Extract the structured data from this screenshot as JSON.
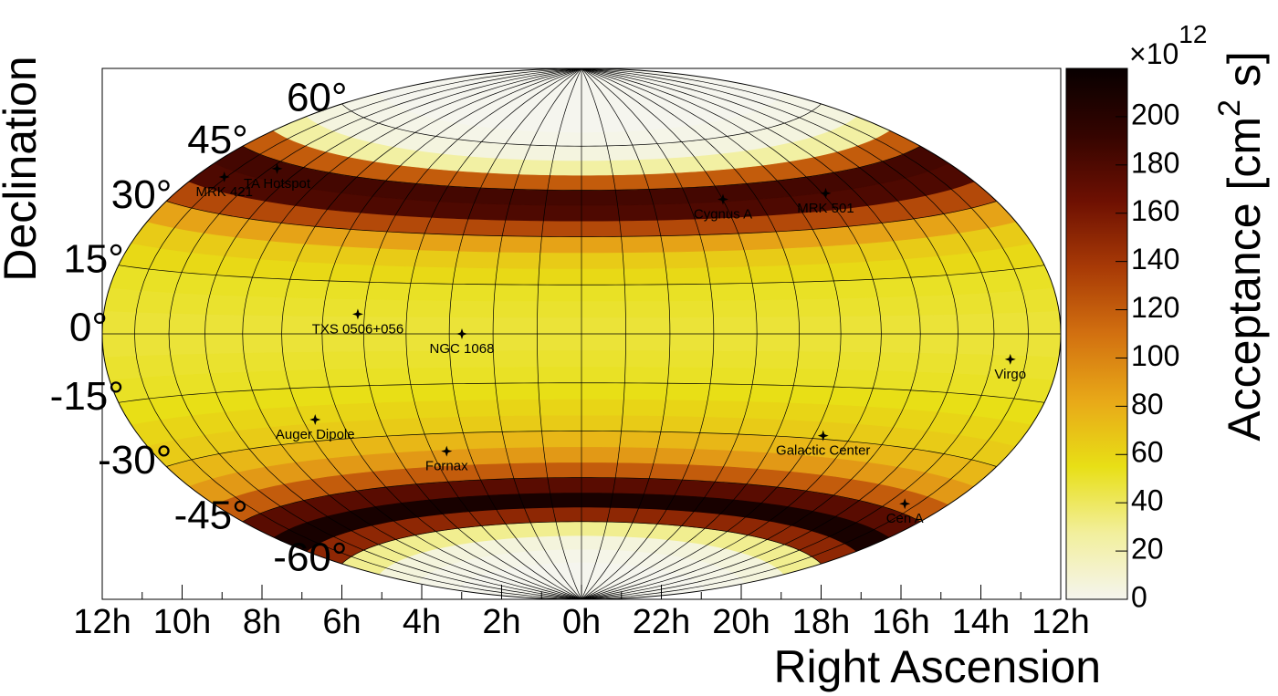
{
  "chart_data": {
    "type": "skymap",
    "xlabel": "Right Ascension",
    "ylabel": "Declination",
    "colorbar_label": [
      "Acceptance [cm",
      "2",
      " s]"
    ],
    "colorbar_multiplier": {
      "base": "×10",
      "exponent": 12
    },
    "xlim": [
      12,
      -12
    ],
    "xticks": [
      {
        "value": 12,
        "label": "12h"
      },
      {
        "value": 10,
        "label": "10h"
      },
      {
        "value": 8,
        "label": "8h"
      },
      {
        "value": 6,
        "label": "6h"
      },
      {
        "value": 4,
        "label": "4h"
      },
      {
        "value": 2,
        "label": "2h"
      },
      {
        "value": 0,
        "label": "0h"
      },
      {
        "value": -2,
        "label": "22h"
      },
      {
        "value": -4,
        "label": "20h"
      },
      {
        "value": -6,
        "label": "18h"
      },
      {
        "value": -8,
        "label": "16h"
      },
      {
        "value": -10,
        "label": "14h"
      },
      {
        "value": -12,
        "label": "12h"
      }
    ],
    "ylim": [
      -90,
      90
    ],
    "yticks": [
      {
        "value": 60,
        "label": "60°"
      },
      {
        "value": 45,
        "label": "45°"
      },
      {
        "value": 30,
        "label": "30°"
      },
      {
        "value": 15,
        "label": "15°"
      },
      {
        "value": 0,
        "label": "0°"
      },
      {
        "value": -15,
        "label": "-15°"
      },
      {
        "value": -30,
        "label": "-30°"
      },
      {
        "value": -45,
        "label": "-45°"
      },
      {
        "value": -60,
        "label": "-60°"
      }
    ],
    "clim": [
      0,
      220
    ],
    "cticks": [
      0,
      20,
      40,
      60,
      80,
      100,
      120,
      140,
      160,
      180,
      200
    ],
    "colormap": [
      "#f5f5ee",
      "#f2ef9c",
      "#e8df16",
      "#e8a818",
      "#d27010",
      "#a83a06",
      "#6e1002",
      "#340400",
      "#080000"
    ],
    "dec_bins": [
      -90,
      -85,
      -80,
      -75,
      -70,
      -65,
      -60,
      -55,
      -50,
      -45,
      -40,
      -35,
      -30,
      -25,
      -20,
      -15,
      -10,
      -5,
      0,
      5,
      10,
      15,
      20,
      25,
      30,
      35,
      40,
      45,
      50,
      55,
      60,
      65,
      70,
      75,
      80,
      85,
      90
    ],
    "values": [
      0,
      0,
      0,
      2,
      6,
      30,
      150,
      210,
      175,
      120,
      90,
      75,
      65,
      60,
      55,
      52,
      50,
      48,
      48,
      50,
      52,
      58,
      65,
      85,
      130,
      180,
      185,
      120,
      25,
      5,
      2,
      0,
      0,
      0,
      0,
      0
    ],
    "sources": [
      {
        "name": "MRK 421",
        "ra": 11.07,
        "dec": 38.2
      },
      {
        "name": "TA Hotspot",
        "ra": 9.78,
        "dec": 43.2
      },
      {
        "name": "Cygnus A",
        "ra": 19.99,
        "dec": 40.7
      },
      {
        "name": "MRK 501",
        "ra": 16.9,
        "dec": 39.8
      },
      {
        "name": "TXS 0506+056",
        "ra": 5.16,
        "dec": 5.7
      },
      {
        "name": "NGC 1068",
        "ra": 2.71,
        "dec": 0
      },
      {
        "name": "Virgo",
        "ra": 13.47,
        "dec": -6
      },
      {
        "name": "Auger Dipole",
        "ra": 6.67,
        "dec": -24
      },
      {
        "name": "Fornax",
        "ra": 3.6,
        "dec": -35.5
      },
      {
        "name": "Galactic Center",
        "ra": 17.76,
        "dec": -29
      },
      {
        "name": "Cen A",
        "ra": 13.42,
        "dec": -43
      }
    ]
  }
}
